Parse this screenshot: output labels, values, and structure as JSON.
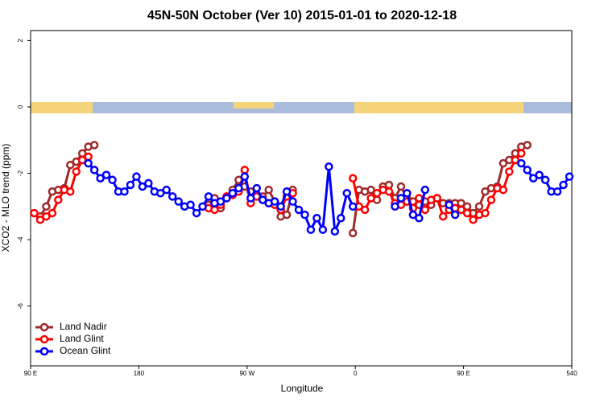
{
  "chart_data": {
    "type": "line",
    "title": "45N-50N October (Ver 10)   2015-01-01 to 2020-12-18",
    "x_label": "Longitude",
    "y_label": "XCO2 - MLO trend (ppm)",
    "x": [
      93,
      98,
      103,
      108,
      113,
      118,
      123,
      128,
      133,
      138,
      143,
      148,
      153,
      158,
      163,
      168,
      173,
      178,
      183,
      188,
      193,
      198,
      203,
      208,
      213,
      218,
      223,
      228,
      233,
      238,
      243,
      248,
      253,
      258,
      263,
      268,
      273,
      278,
      283,
      288,
      293,
      298,
      303,
      308,
      313,
      318,
      323,
      328,
      333,
      338,
      343,
      348,
      353,
      358,
      363,
      368,
      373,
      378,
      383,
      388,
      393,
      398,
      403,
      408,
      413,
      418,
      423,
      428,
      433,
      438,
      443,
      448,
      453,
      458,
      463,
      468,
      473,
      478,
      483,
      488,
      493,
      498,
      503,
      508,
      513,
      518,
      523,
      528,
      533,
      538
    ],
    "series": [
      {
        "name": "Land Nadir",
        "color": "#9e2a2a",
        "values": [
          -3.2,
          -3.3,
          -3.0,
          -2.55,
          -2.5,
          -2.45,
          -1.75,
          -1.65,
          -1.4,
          -1.2,
          -1.15,
          null,
          null,
          null,
          null,
          null,
          null,
          null,
          null,
          null,
          null,
          null,
          null,
          null,
          null,
          null,
          null,
          null,
          null,
          -2.95,
          -2.75,
          -3.05,
          -2.7,
          -2.5,
          -2.2,
          -2.4,
          -2.55,
          -2.65,
          -2.7,
          -2.5,
          -2.85,
          -3.3,
          -3.25,
          -2.5,
          null,
          null,
          null,
          null,
          null,
          null,
          null,
          null,
          null,
          -3.8,
          -2.5,
          -2.55,
          -2.5,
          -2.8,
          -2.4,
          -2.35,
          -2.75,
          -2.4,
          -2.75,
          -2.85,
          -2.95,
          -2.85,
          -2.95,
          -2.75,
          -2.9,
          -2.9,
          -2.9,
          -2.9,
          -3.0,
          -3.2,
          -3.0,
          -2.55,
          -2.45,
          -2.4,
          -1.7,
          -1.6,
          -1.4,
          -1.2,
          -1.15,
          null,
          null,
          null,
          null,
          null,
          null,
          null
        ]
      },
      {
        "name": "Land Glint",
        "color": "#ff0000",
        "values": [
          -3.2,
          -3.4,
          -3.3,
          -3.2,
          -2.8,
          -2.5,
          -2.55,
          -1.95,
          -1.6,
          -1.5,
          null,
          null,
          null,
          null,
          null,
          null,
          null,
          null,
          null,
          null,
          null,
          null,
          null,
          null,
          null,
          null,
          null,
          null,
          null,
          -3.05,
          -3.1,
          -2.95,
          -2.7,
          -2.65,
          -2.55,
          -1.9,
          -2.9,
          -2.7,
          -2.8,
          -2.9,
          -2.95,
          -3.1,
          -2.7,
          -2.6,
          null,
          null,
          null,
          null,
          null,
          null,
          null,
          null,
          null,
          -2.15,
          -3.0,
          -3.1,
          -2.75,
          -2.6,
          -2.5,
          -2.55,
          -2.9,
          -2.95,
          -2.85,
          -3.05,
          -2.75,
          -3.1,
          -2.8,
          -2.75,
          -3.3,
          -3.1,
          -3.05,
          -3.1,
          -3.2,
          -3.4,
          -3.25,
          -3.2,
          -2.8,
          -2.45,
          -2.5,
          -1.95,
          -1.6,
          -1.4,
          null,
          null,
          null,
          null,
          null,
          null,
          null,
          null
        ]
      },
      {
        "name": "Ocean Glint",
        "color": "#0000ff",
        "values": [
          null,
          null,
          null,
          null,
          null,
          null,
          null,
          null,
          null,
          -1.7,
          -1.9,
          -2.15,
          -2.05,
          -2.2,
          -2.55,
          -2.55,
          -2.35,
          -2.1,
          -2.4,
          -2.3,
          -2.55,
          -2.6,
          -2.5,
          -2.7,
          -2.85,
          -3.0,
          -2.95,
          -3.2,
          -3.0,
          -2.7,
          -2.9,
          -2.85,
          -2.75,
          -2.6,
          -2.45,
          -2.1,
          -2.75,
          -2.45,
          -2.8,
          -2.9,
          -2.85,
          -3.0,
          -2.55,
          -2.85,
          -3.1,
          -3.25,
          -3.7,
          -3.35,
          -3.7,
          -1.8,
          -3.75,
          -3.35,
          -2.6,
          -3.0,
          null,
          null,
          null,
          null,
          null,
          null,
          -3.0,
          -2.75,
          -2.6,
          -3.25,
          -3.35,
          -2.5,
          null,
          null,
          null,
          -2.95,
          -3.25,
          null,
          null,
          null,
          null,
          null,
          null,
          null,
          null,
          null,
          null,
          -1.7,
          -1.9,
          -2.15,
          -2.05,
          -2.2,
          -2.55,
          -2.55,
          -2.35,
          -2.1
        ]
      }
    ],
    "xlim": [
      90,
      540
    ],
    "xticks": [
      {
        "value": 90,
        "label": "90 E"
      },
      180,
      {
        "value": 270,
        "label": "90 W"
      },
      {
        "value": 360,
        "label": "0"
      },
      {
        "value": 450,
        "label": "90 E"
      },
      540
    ],
    "ylim": [
      -7.8,
      2.3
    ],
    "yticks": [
      -6,
      -4,
      -2,
      0,
      2
    ],
    "grid": false,
    "legend": "bottom-left"
  }
}
